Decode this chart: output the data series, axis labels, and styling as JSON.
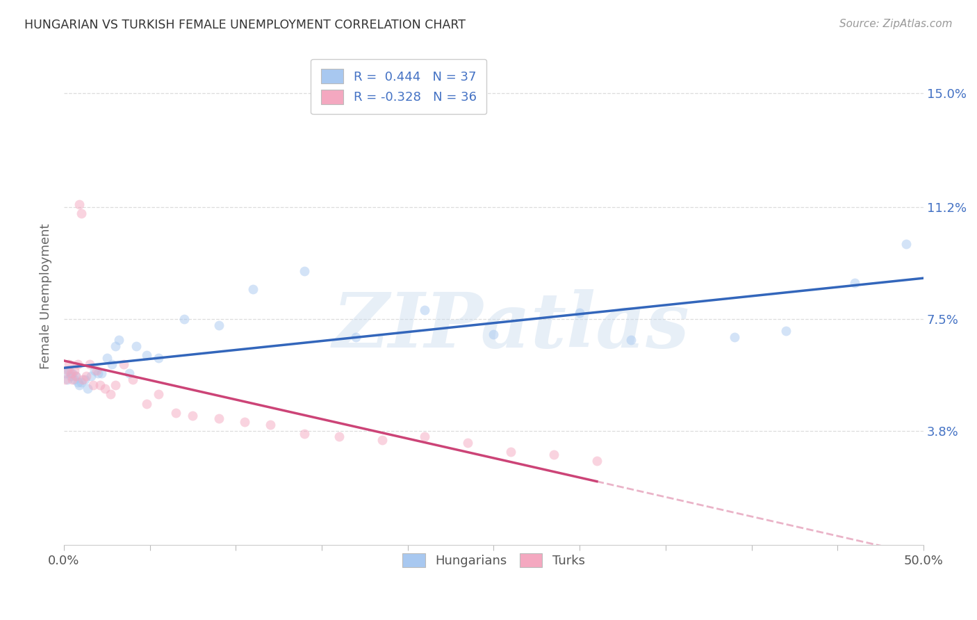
{
  "title": "HUNGARIAN VS TURKISH FEMALE UNEMPLOYMENT CORRELATION CHART",
  "source": "Source: ZipAtlas.com",
  "ylabel": "Female Unemployment",
  "watermark": "ZIPatlas",
  "xlim": [
    0.0,
    0.5
  ],
  "ylim": [
    0.0,
    0.165
  ],
  "xtick_positions": [
    0.0,
    0.1,
    0.2,
    0.3,
    0.4,
    0.5
  ],
  "xticklabels": [
    "0.0%",
    "",
    "",
    "",
    "",
    "50.0%"
  ],
  "ytick_positions": [
    0.038,
    0.075,
    0.112,
    0.15
  ],
  "ytick_labels": [
    "3.8%",
    "7.5%",
    "11.2%",
    "15.0%"
  ],
  "hungarian_color": "#A8C8F0",
  "turkish_color": "#F4A8C0",
  "hungarian_line_color": "#3366BB",
  "turkish_line_color": "#CC4477",
  "hungarian_x": [
    0.001,
    0.002,
    0.003,
    0.004,
    0.005,
    0.006,
    0.007,
    0.008,
    0.009,
    0.01,
    0.012,
    0.014,
    0.016,
    0.018,
    0.02,
    0.022,
    0.025,
    0.028,
    0.03,
    0.032,
    0.038,
    0.042,
    0.048,
    0.055,
    0.07,
    0.09,
    0.11,
    0.14,
    0.17,
    0.21,
    0.25,
    0.3,
    0.33,
    0.39,
    0.42,
    0.46,
    0.49
  ],
  "hungarian_y": [
    0.057,
    0.055,
    0.058,
    0.056,
    0.057,
    0.055,
    0.056,
    0.054,
    0.053,
    0.054,
    0.055,
    0.052,
    0.056,
    0.058,
    0.057,
    0.057,
    0.062,
    0.06,
    0.066,
    0.068,
    0.057,
    0.066,
    0.063,
    0.062,
    0.075,
    0.073,
    0.085,
    0.091,
    0.069,
    0.078,
    0.07,
    0.077,
    0.068,
    0.069,
    0.071,
    0.087,
    0.1
  ],
  "turkish_x": [
    0.001,
    0.002,
    0.003,
    0.004,
    0.005,
    0.006,
    0.007,
    0.008,
    0.009,
    0.01,
    0.011,
    0.013,
    0.015,
    0.017,
    0.019,
    0.021,
    0.024,
    0.027,
    0.03,
    0.035,
    0.04,
    0.048,
    0.055,
    0.065,
    0.075,
    0.09,
    0.105,
    0.12,
    0.14,
    0.16,
    0.185,
    0.21,
    0.235,
    0.26,
    0.285,
    0.31
  ],
  "turkish_y": [
    0.055,
    0.058,
    0.06,
    0.057,
    0.055,
    0.058,
    0.056,
    0.06,
    0.113,
    0.11,
    0.055,
    0.056,
    0.06,
    0.053,
    0.058,
    0.053,
    0.052,
    0.05,
    0.053,
    0.06,
    0.055,
    0.047,
    0.05,
    0.044,
    0.043,
    0.042,
    0.041,
    0.04,
    0.037,
    0.036,
    0.035,
    0.036,
    0.034,
    0.031,
    0.03,
    0.028
  ],
  "bg_color": "#FFFFFF",
  "grid_color": "#DDDDDD",
  "title_color": "#333333",
  "axis_label_color": "#666666",
  "right_tick_color": "#4472C4",
  "marker_size": 100,
  "marker_alpha": 0.5,
  "figsize": [
    14.06,
    8.92
  ],
  "dpi": 100
}
